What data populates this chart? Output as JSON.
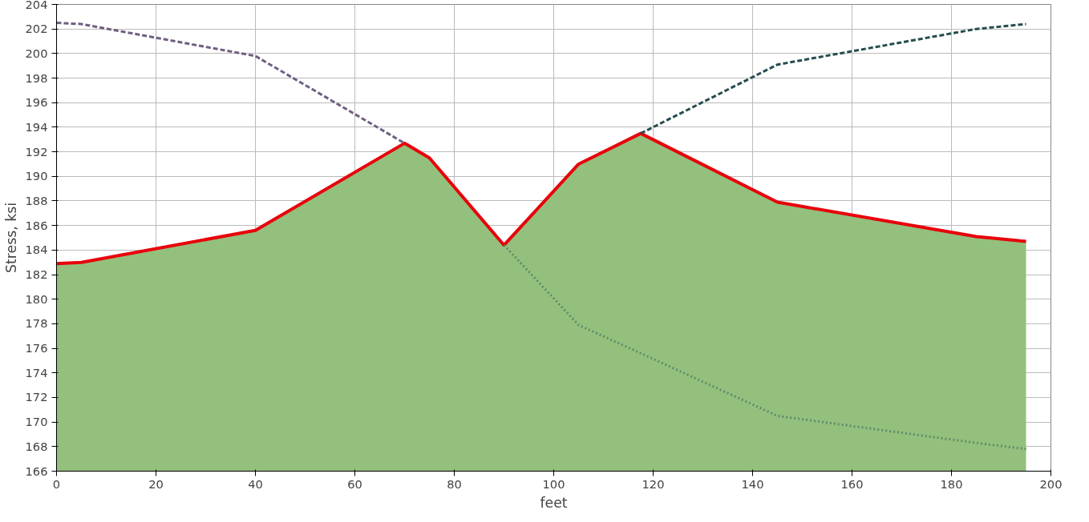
{
  "chart_data": {
    "type": "line",
    "xlabel": "feet",
    "ylabel": "Stress, ksi",
    "xlim": [
      0,
      200
    ],
    "ylim": [
      166,
      204
    ],
    "xticks": [
      0,
      20,
      40,
      60,
      80,
      100,
      120,
      140,
      160,
      180,
      200
    ],
    "yticks": [
      166,
      168,
      170,
      172,
      174,
      176,
      178,
      180,
      182,
      184,
      186,
      188,
      190,
      192,
      194,
      196,
      198,
      200,
      202,
      204
    ],
    "grid": true,
    "marker": "none",
    "series": [
      {
        "type": "area",
        "color": "#93c07c",
        "x": [
          0,
          5,
          40,
          70,
          75,
          90,
          105,
          117.5,
          145,
          185,
          195
        ],
        "values": [
          182.9,
          183.0,
          185.6,
          192.7,
          191.5,
          184.4,
          191.0,
          193.5,
          187.9,
          185.1,
          184.7
        ]
      },
      {
        "color": "#e8000b",
        "line_style": "solid",
        "x": [
          0,
          5,
          40,
          70,
          75,
          90,
          105,
          117.5,
          145,
          185,
          195
        ],
        "values": [
          182.9,
          183.0,
          185.6,
          192.7,
          191.5,
          184.4,
          191.0,
          193.5,
          187.9,
          185.1,
          184.7
        ]
      },
      {
        "color": "#6f5f80",
        "line_style": "dashed",
        "x": [
          0,
          5,
          40,
          70
        ],
        "values": [
          202.5,
          202.4,
          199.8,
          192.7
        ]
      },
      {
        "color": "#254d4f",
        "line_style": "dashed",
        "x": [
          117.5,
          145,
          185,
          195
        ],
        "values": [
          193.5,
          199.1,
          202.0,
          202.4
        ]
      },
      {
        "color": "#5f8c6a",
        "line_style": "dotted",
        "x": [
          90,
          105,
          117.5,
          145,
          185,
          195
        ],
        "values": [
          184.4,
          177.9,
          175.6,
          170.5,
          168.3,
          167.8
        ]
      }
    ]
  }
}
